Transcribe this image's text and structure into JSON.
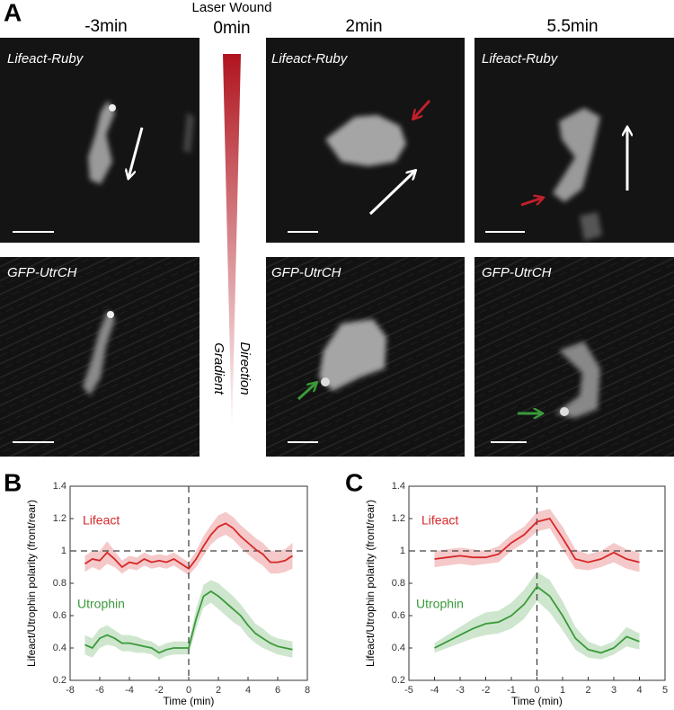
{
  "panel_a": {
    "label": "A",
    "wound_label": "Laser Wound",
    "columns": [
      "-3min",
      "0min",
      "2min",
      "5.5min"
    ],
    "row_labels": [
      "Lifeact-Ruby",
      "GFP-UtrCH"
    ],
    "gradient_labels": [
      "Gradient",
      "Direction"
    ]
  },
  "chart_data": [
    {
      "type": "line",
      "panel_label": "B",
      "xlabel": "Time (min)",
      "ylabel": "Lifeact/Utrophin polarity (front/rear)",
      "x": [
        -7,
        -6.5,
        -6,
        -5.5,
        -5,
        -4.5,
        -4,
        -3.5,
        -3,
        -2.5,
        -2,
        -1.5,
        -1,
        -0.5,
        0,
        0.5,
        1,
        1.5,
        2,
        2.5,
        3,
        3.5,
        4,
        4.5,
        5,
        5.5,
        6,
        6.5,
        7
      ],
      "series": [
        {
          "name": "Lifeact",
          "color": "#d62728",
          "values": [
            0.92,
            0.95,
            0.94,
            0.99,
            0.95,
            0.9,
            0.93,
            0.92,
            0.95,
            0.93,
            0.94,
            0.93,
            0.95,
            0.92,
            0.89,
            0.95,
            1.03,
            1.1,
            1.15,
            1.17,
            1.14,
            1.09,
            1.05,
            1.01,
            0.98,
            0.93,
            0.93,
            0.94,
            0.97
          ],
          "error": [
            0.05,
            0.05,
            0.06,
            0.07,
            0.05,
            0.04,
            0.04,
            0.04,
            0.04,
            0.04,
            0.04,
            0.04,
            0.04,
            0.04,
            0.04,
            0.05,
            0.06,
            0.06,
            0.07,
            0.07,
            0.07,
            0.07,
            0.07,
            0.07,
            0.07,
            0.07,
            0.07,
            0.07,
            0.08
          ]
        },
        {
          "name": "Utrophin",
          "color": "#3a9a3a",
          "values": [
            0.42,
            0.4,
            0.46,
            0.48,
            0.46,
            0.43,
            0.43,
            0.42,
            0.41,
            0.4,
            0.37,
            0.39,
            0.4,
            0.4,
            0.4,
            0.58,
            0.72,
            0.75,
            0.72,
            0.68,
            0.64,
            0.6,
            0.54,
            0.49,
            0.46,
            0.43,
            0.41,
            0.4,
            0.39
          ],
          "error": [
            0.06,
            0.06,
            0.06,
            0.06,
            0.05,
            0.05,
            0.05,
            0.05,
            0.04,
            0.04,
            0.04,
            0.04,
            0.04,
            0.04,
            0.04,
            0.06,
            0.07,
            0.07,
            0.08,
            0.08,
            0.08,
            0.07,
            0.07,
            0.06,
            0.06,
            0.05,
            0.05,
            0.05,
            0.05
          ]
        }
      ],
      "xlim": [
        -8,
        8
      ],
      "xticks": [
        -8,
        -6,
        -4,
        -2,
        0,
        2,
        4,
        6,
        8
      ],
      "ylim": [
        0.2,
        1.4
      ],
      "yticks": [
        0.2,
        0.4,
        0.6,
        0.8,
        1,
        1.2,
        1.4
      ],
      "vline": 0,
      "hline": 1
    },
    {
      "type": "line",
      "panel_label": "C",
      "xlabel": "Time (min)",
      "ylabel": "Lifeact/Utrophin polarity (front/rear)",
      "x": [
        -4,
        -3.5,
        -3,
        -2.5,
        -2,
        -1.5,
        -1,
        -0.5,
        0,
        0.5,
        1,
        1.5,
        2,
        2.5,
        3,
        3.5,
        4
      ],
      "series": [
        {
          "name": "Lifeact",
          "color": "#d62728",
          "values": [
            0.95,
            0.96,
            0.97,
            0.96,
            0.96,
            0.98,
            1.05,
            1.1,
            1.18,
            1.2,
            1.08,
            0.95,
            0.93,
            0.95,
            0.99,
            0.95,
            0.93
          ],
          "error": [
            0.05,
            0.05,
            0.05,
            0.05,
            0.04,
            0.05,
            0.05,
            0.05,
            0.06,
            0.06,
            0.07,
            0.06,
            0.05,
            0.05,
            0.06,
            0.06,
            0.06
          ]
        },
        {
          "name": "Utrophin",
          "color": "#3a9a3a",
          "values": [
            0.4,
            0.44,
            0.48,
            0.52,
            0.55,
            0.56,
            0.6,
            0.67,
            0.78,
            0.72,
            0.6,
            0.46,
            0.39,
            0.37,
            0.4,
            0.47,
            0.44
          ],
          "error": [
            0.03,
            0.04,
            0.05,
            0.06,
            0.07,
            0.07,
            0.08,
            0.09,
            0.09,
            0.1,
            0.09,
            0.07,
            0.05,
            0.04,
            0.04,
            0.06,
            0.05
          ]
        }
      ],
      "xlim": [
        -5,
        5
      ],
      "xticks": [
        -5,
        -4,
        -3,
        -2,
        -1,
        0,
        1,
        2,
        3,
        4,
        5
      ],
      "ylim": [
        0.2,
        1.4
      ],
      "yticks": [
        0.2,
        0.4,
        0.6,
        0.8,
        1,
        1.2,
        1.4
      ],
      "vline": 0,
      "hline": 1
    }
  ]
}
